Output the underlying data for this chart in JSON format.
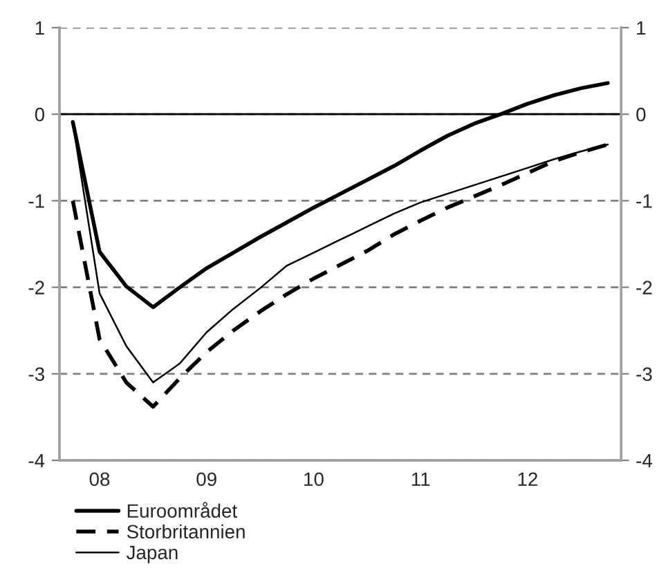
{
  "chart_data": {
    "type": "line",
    "categories": [
      null,
      "08",
      null,
      null,
      null,
      "09",
      null,
      null,
      null,
      "10",
      null,
      null,
      null,
      "11",
      null,
      null,
      null,
      "12",
      null,
      null,
      null
    ],
    "series": [
      {
        "name": "Euroområdet",
        "color": "#000000",
        "line_style": "solid",
        "values": [
          -0.09,
          -1.59,
          -1.99,
          -2.23,
          -2.0,
          -1.78,
          -1.6,
          -1.42,
          -1.25,
          -1.08,
          -0.92,
          -0.76,
          -0.6,
          -0.42,
          -0.25,
          -0.11,
          0.0,
          0.12,
          0.22,
          0.3,
          0.36
        ]
      },
      {
        "name": "Storbritannien",
        "color": "#000000",
        "line_style": "dashed",
        "values": [
          -1.0,
          -2.6,
          -3.1,
          -3.38,
          -3.05,
          -2.75,
          -2.5,
          -2.28,
          -2.08,
          -1.9,
          -1.74,
          -1.58,
          -1.39,
          -1.23,
          -1.08,
          -0.95,
          -0.82,
          -0.68,
          -0.54,
          -0.44,
          -0.35
        ]
      },
      {
        "name": "Japan",
        "color": "#000000",
        "line_style": "solid",
        "values": [
          -0.1,
          -2.07,
          -2.68,
          -3.1,
          -2.88,
          -2.52,
          -2.25,
          -2.01,
          -1.75,
          -1.6,
          -1.45,
          -1.3,
          -1.15,
          -1.02,
          -0.92,
          -0.82,
          -0.72,
          -0.62,
          -0.52,
          -0.43,
          -0.35
        ]
      }
    ],
    "ylim": [
      -4,
      1
    ],
    "yticks": [
      -4,
      -3,
      -2,
      -1,
      0,
      1
    ],
    "y2lim": [
      -4,
      1
    ],
    "y2ticks": [
      -4,
      -3,
      -2,
      -1,
      0,
      1
    ],
    "grid": "y",
    "ref_lines": [
      {
        "axis": "y",
        "value": 0,
        "color": "#000000",
        "line_style": "solid"
      }
    ],
    "legend": "bottom left",
    "marker": "none"
  }
}
